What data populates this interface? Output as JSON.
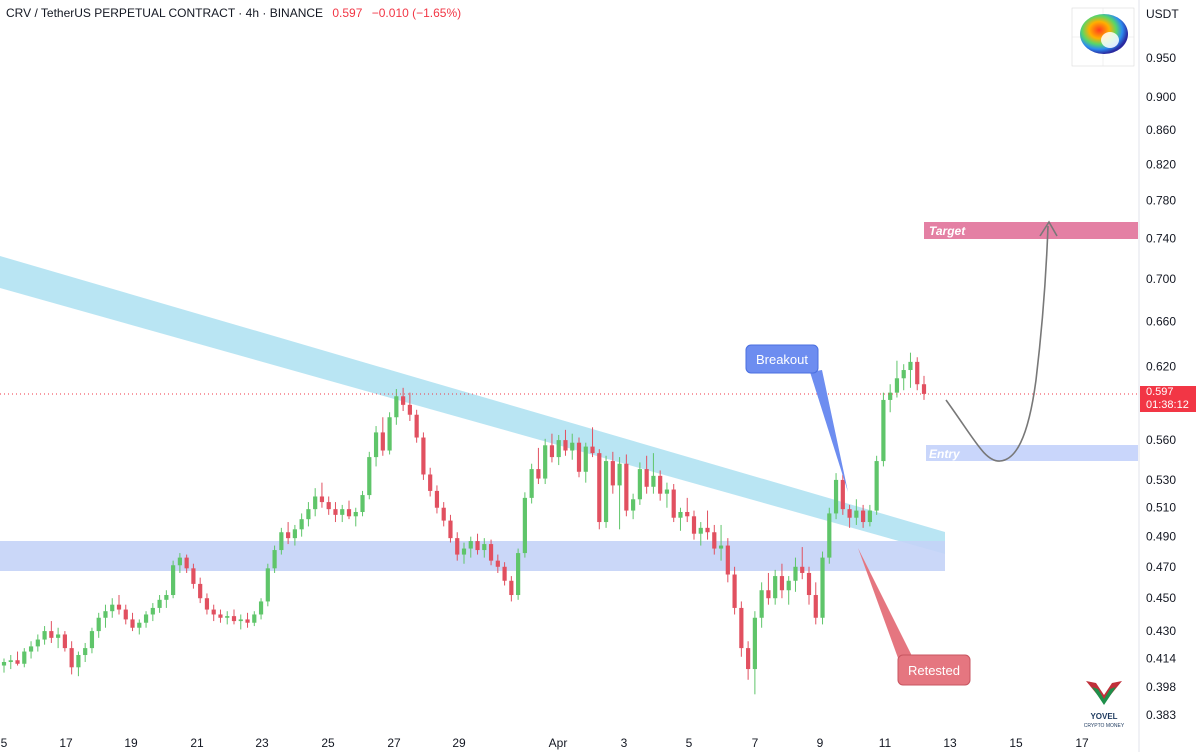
{
  "header": {
    "symbol": "CRV / TetherUS PERPETUAL CONTRACT",
    "interval": "4h",
    "exchange": "BINANCE",
    "separator": "·",
    "price": "0.597",
    "change": "−0.010 (−1.65%)"
  },
  "currency": "USDT",
  "price_badge": {
    "price": "0.597",
    "countdown": "01:38:12"
  },
  "logos": {
    "top": "curve-logo",
    "bottom": "yovel-logo",
    "bottom_text_1": "YOVEL",
    "bottom_text_2": "CRYPTO MONEY"
  },
  "colors": {
    "up": "#5fc56a",
    "down": "#e15060",
    "trend_band": "#a8def0",
    "support_zone": "#c4d3f7",
    "target_box": "#e480a4",
    "entry_box": "#c9d6fb",
    "breakout_callout": "#6d8df0",
    "retested_callout": "#e57680",
    "price_line": "#f23645"
  },
  "chart_data": {
    "type": "candlestick",
    "symbol": "CRV/USDT",
    "interval": "4h",
    "price_scale": "log",
    "y_ticks": [
      "0.950",
      "0.900",
      "0.860",
      "0.820",
      "0.780",
      "0.740",
      "0.700",
      "0.660",
      "0.620",
      "0.560",
      "0.530",
      "0.510",
      "0.490",
      "0.470",
      "0.450",
      "0.430",
      "0.414",
      "0.398",
      "0.383"
    ],
    "x_ticks": [
      "5",
      "17",
      "19",
      "21",
      "23",
      "25",
      "27",
      "29",
      "Apr",
      "3",
      "5",
      "7",
      "9",
      "11",
      "13",
      "15",
      "17"
    ],
    "last_price": 0.597,
    "annotations": [
      {
        "type": "label",
        "text": "Breakout"
      },
      {
        "type": "label",
        "text": "Retested"
      },
      {
        "type": "zone",
        "text": "Target",
        "price_range": [
          0.744,
          0.758
        ]
      },
      {
        "type": "zone",
        "text": "Entry",
        "price_range": [
          0.548,
          0.56
        ]
      },
      {
        "type": "zone",
        "text": "",
        "price_range": [
          0.47,
          0.486
        ]
      },
      {
        "type": "trendline_band",
        "text": ""
      }
    ],
    "candles": [
      [
        0.41,
        0.414,
        0.406,
        0.412
      ],
      [
        0.412,
        0.416,
        0.408,
        0.413
      ],
      [
        0.413,
        0.418,
        0.41,
        0.411
      ],
      [
        0.411,
        0.42,
        0.409,
        0.418
      ],
      [
        0.418,
        0.424,
        0.414,
        0.421
      ],
      [
        0.421,
        0.428,
        0.418,
        0.425
      ],
      [
        0.425,
        0.433,
        0.422,
        0.43
      ],
      [
        0.43,
        0.436,
        0.423,
        0.426
      ],
      [
        0.426,
        0.432,
        0.42,
        0.428
      ],
      [
        0.428,
        0.43,
        0.418,
        0.42
      ],
      [
        0.42,
        0.424,
        0.405,
        0.409
      ],
      [
        0.409,
        0.418,
        0.404,
        0.416
      ],
      [
        0.416,
        0.423,
        0.412,
        0.42
      ],
      [
        0.42,
        0.432,
        0.417,
        0.43
      ],
      [
        0.43,
        0.441,
        0.426,
        0.438
      ],
      [
        0.438,
        0.446,
        0.432,
        0.442
      ],
      [
        0.442,
        0.45,
        0.438,
        0.446
      ],
      [
        0.446,
        0.452,
        0.44,
        0.443
      ],
      [
        0.443,
        0.446,
        0.434,
        0.437
      ],
      [
        0.437,
        0.441,
        0.43,
        0.432
      ],
      [
        0.432,
        0.437,
        0.428,
        0.435
      ],
      [
        0.435,
        0.442,
        0.432,
        0.44
      ],
      [
        0.44,
        0.447,
        0.436,
        0.444
      ],
      [
        0.444,
        0.452,
        0.441,
        0.449
      ],
      [
        0.449,
        0.455,
        0.444,
        0.452
      ],
      [
        0.452,
        0.474,
        0.45,
        0.471
      ],
      [
        0.471,
        0.479,
        0.466,
        0.476
      ],
      [
        0.476,
        0.478,
        0.466,
        0.469
      ],
      [
        0.469,
        0.472,
        0.456,
        0.459
      ],
      [
        0.459,
        0.463,
        0.447,
        0.45
      ],
      [
        0.45,
        0.453,
        0.44,
        0.443
      ],
      [
        0.443,
        0.446,
        0.436,
        0.44
      ],
      [
        0.44,
        0.443,
        0.435,
        0.438
      ],
      [
        0.438,
        0.442,
        0.434,
        0.439
      ],
      [
        0.439,
        0.443,
        0.434,
        0.436
      ],
      [
        0.436,
        0.44,
        0.431,
        0.437
      ],
      [
        0.437,
        0.441,
        0.432,
        0.435
      ],
      [
        0.435,
        0.442,
        0.433,
        0.44
      ],
      [
        0.44,
        0.45,
        0.437,
        0.448
      ],
      [
        0.448,
        0.472,
        0.445,
        0.469
      ],
      [
        0.469,
        0.484,
        0.466,
        0.481
      ],
      [
        0.481,
        0.496,
        0.478,
        0.493
      ],
      [
        0.493,
        0.5,
        0.485,
        0.489
      ],
      [
        0.489,
        0.498,
        0.484,
        0.495
      ],
      [
        0.495,
        0.506,
        0.49,
        0.502
      ],
      [
        0.502,
        0.514,
        0.497,
        0.509
      ],
      [
        0.509,
        0.524,
        0.504,
        0.518
      ],
      [
        0.518,
        0.528,
        0.51,
        0.514
      ],
      [
        0.514,
        0.518,
        0.505,
        0.509
      ],
      [
        0.509,
        0.514,
        0.5,
        0.505
      ],
      [
        0.505,
        0.512,
        0.5,
        0.509
      ],
      [
        0.509,
        0.515,
        0.502,
        0.504
      ],
      [
        0.504,
        0.51,
        0.497,
        0.507
      ],
      [
        0.507,
        0.522,
        0.504,
        0.519
      ],
      [
        0.519,
        0.551,
        0.516,
        0.547
      ],
      [
        0.547,
        0.571,
        0.54,
        0.566
      ],
      [
        0.566,
        0.578,
        0.548,
        0.552
      ],
      [
        0.552,
        0.582,
        0.549,
        0.578
      ],
      [
        0.578,
        0.601,
        0.572,
        0.595
      ],
      [
        0.595,
        0.602,
        0.583,
        0.588
      ],
      [
        0.588,
        0.598,
        0.575,
        0.58
      ],
      [
        0.58,
        0.584,
        0.558,
        0.562
      ],
      [
        0.562,
        0.566,
        0.53,
        0.534
      ],
      [
        0.534,
        0.539,
        0.518,
        0.522
      ],
      [
        0.522,
        0.526,
        0.506,
        0.51
      ],
      [
        0.51,
        0.514,
        0.497,
        0.501
      ],
      [
        0.501,
        0.505,
        0.486,
        0.489
      ],
      [
        0.489,
        0.493,
        0.474,
        0.478
      ],
      [
        0.478,
        0.486,
        0.472,
        0.482
      ],
      [
        0.482,
        0.49,
        0.476,
        0.487
      ],
      [
        0.487,
        0.492,
        0.478,
        0.481
      ],
      [
        0.481,
        0.489,
        0.476,
        0.485
      ],
      [
        0.485,
        0.488,
        0.471,
        0.474
      ],
      [
        0.474,
        0.478,
        0.466,
        0.47
      ],
      [
        0.47,
        0.473,
        0.458,
        0.461
      ],
      [
        0.461,
        0.464,
        0.448,
        0.452
      ],
      [
        0.452,
        0.482,
        0.449,
        0.479
      ],
      [
        0.479,
        0.521,
        0.476,
        0.517
      ],
      [
        0.517,
        0.542,
        0.513,
        0.538
      ],
      [
        0.538,
        0.554,
        0.527,
        0.531
      ],
      [
        0.531,
        0.561,
        0.527,
        0.556
      ],
      [
        0.556,
        0.565,
        0.543,
        0.547
      ],
      [
        0.547,
        0.564,
        0.541,
        0.56
      ],
      [
        0.56,
        0.568,
        0.548,
        0.552
      ],
      [
        0.552,
        0.565,
        0.545,
        0.558
      ],
      [
        0.558,
        0.562,
        0.532,
        0.536
      ],
      [
        0.536,
        0.558,
        0.528,
        0.555
      ],
      [
        0.555,
        0.57,
        0.547,
        0.55
      ],
      [
        0.55,
        0.553,
        0.495,
        0.5
      ],
      [
        0.5,
        0.548,
        0.496,
        0.544
      ],
      [
        0.544,
        0.551,
        0.52,
        0.526
      ],
      [
        0.526,
        0.547,
        0.495,
        0.542
      ],
      [
        0.542,
        0.549,
        0.504,
        0.508
      ],
      [
        0.508,
        0.52,
        0.502,
        0.516
      ],
      [
        0.516,
        0.543,
        0.512,
        0.538
      ],
      [
        0.538,
        0.548,
        0.52,
        0.525
      ],
      [
        0.525,
        0.55,
        0.52,
        0.533
      ],
      [
        0.533,
        0.537,
        0.515,
        0.52
      ],
      [
        0.52,
        0.528,
        0.51,
        0.523
      ],
      [
        0.523,
        0.527,
        0.5,
        0.503
      ],
      [
        0.503,
        0.51,
        0.494,
        0.507
      ],
      [
        0.507,
        0.517,
        0.5,
        0.504
      ],
      [
        0.504,
        0.508,
        0.488,
        0.492
      ],
      [
        0.492,
        0.5,
        0.484,
        0.496
      ],
      [
        0.496,
        0.508,
        0.488,
        0.493
      ],
      [
        0.493,
        0.498,
        0.478,
        0.482
      ],
      [
        0.482,
        0.498,
        0.474,
        0.484
      ],
      [
        0.484,
        0.489,
        0.46,
        0.465
      ],
      [
        0.465,
        0.47,
        0.44,
        0.444
      ],
      [
        0.444,
        0.448,
        0.415,
        0.42
      ],
      [
        0.42,
        0.424,
        0.402,
        0.408
      ],
      [
        0.408,
        0.442,
        0.394,
        0.438
      ],
      [
        0.438,
        0.46,
        0.432,
        0.455
      ],
      [
        0.455,
        0.466,
        0.446,
        0.45
      ],
      [
        0.45,
        0.468,
        0.446,
        0.464
      ],
      [
        0.464,
        0.472,
        0.45,
        0.455
      ],
      [
        0.455,
        0.464,
        0.446,
        0.461
      ],
      [
        0.461,
        0.476,
        0.454,
        0.47
      ],
      [
        0.47,
        0.483,
        0.462,
        0.466
      ],
      [
        0.466,
        0.47,
        0.446,
        0.452
      ],
      [
        0.452,
        0.46,
        0.434,
        0.438
      ],
      [
        0.438,
        0.48,
        0.434,
        0.476
      ],
      [
        0.476,
        0.51,
        0.472,
        0.506
      ],
      [
        0.506,
        0.535,
        0.502,
        0.53
      ],
      [
        0.53,
        0.534,
        0.505,
        0.509
      ],
      [
        0.509,
        0.512,
        0.496,
        0.503
      ],
      [
        0.503,
        0.516,
        0.498,
        0.508
      ],
      [
        0.508,
        0.512,
        0.496,
        0.5
      ],
      [
        0.5,
        0.512,
        0.497,
        0.508
      ],
      [
        0.508,
        0.548,
        0.505,
        0.544
      ],
      [
        0.544,
        0.598,
        0.54,
        0.592
      ],
      [
        0.592,
        0.605,
        0.582,
        0.598
      ],
      [
        0.598,
        0.625,
        0.594,
        0.61
      ],
      [
        0.61,
        0.622,
        0.6,
        0.617
      ],
      [
        0.617,
        0.632,
        0.602,
        0.624
      ],
      [
        0.624,
        0.628,
        0.6,
        0.605
      ],
      [
        0.605,
        0.612,
        0.592,
        0.597
      ]
    ]
  }
}
